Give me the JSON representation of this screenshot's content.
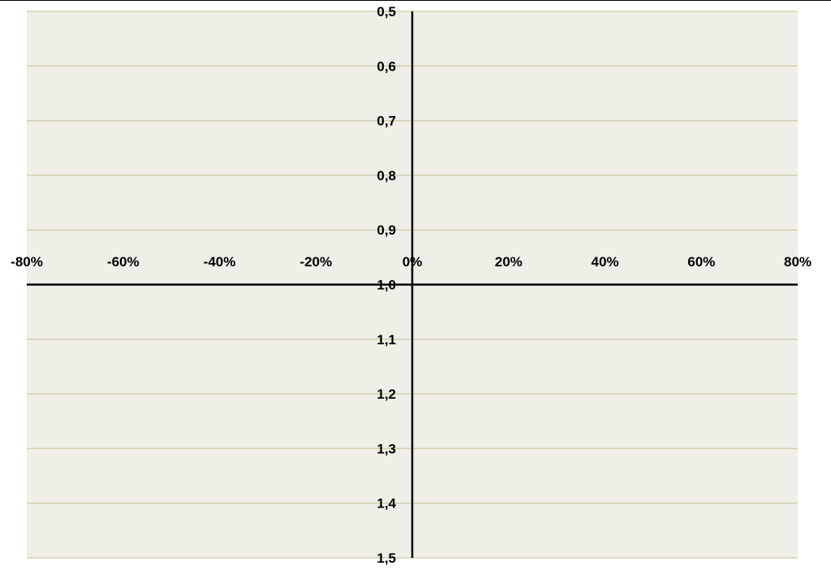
{
  "chart_data": {
    "type": "scatter",
    "title": "",
    "xlabel": "",
    "ylabel": "",
    "xlim": [
      -0.8,
      0.8
    ],
    "ylim": [
      0.5,
      1.5
    ],
    "y_inverted": true,
    "x_axis_crosses_y_at": 1.0,
    "y_axis_crosses_x_at": 0,
    "x_ticks": [
      -0.8,
      -0.6,
      -0.4,
      -0.2,
      0,
      0.2,
      0.4,
      0.6,
      0.8
    ],
    "x_tick_labels": [
      "-80%",
      "-60%",
      "-40%",
      "-20%",
      "0%",
      "20%",
      "40%",
      "60%",
      "80%"
    ],
    "y_ticks": [
      0.5,
      0.6,
      0.7,
      0.8,
      0.9,
      1.0,
      1.1,
      1.2,
      1.3,
      1.4,
      1.5
    ],
    "y_tick_labels": [
      "0,5",
      "0,6",
      "0,7",
      "0,8",
      "0,9",
      "1,0",
      "1,1",
      "1,2",
      "1,3",
      "1,4",
      "1,5"
    ],
    "grid": {
      "horizontal": true,
      "vertical": false
    },
    "legend": "none",
    "series": []
  },
  "colors": {
    "plot_background": "#efeee7",
    "gridline": "#d2cfb2",
    "axis": "#000000",
    "page_background": "#ffffff"
  }
}
